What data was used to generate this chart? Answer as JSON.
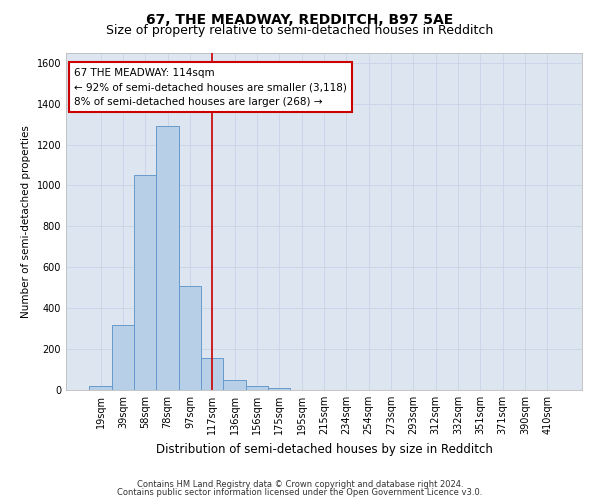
{
  "title": "67, THE MEADWAY, REDDITCH, B97 5AE",
  "subtitle": "Size of property relative to semi-detached houses in Redditch",
  "xlabel": "Distribution of semi-detached houses by size in Redditch",
  "ylabel": "Number of semi-detached properties",
  "footnote1": "Contains HM Land Registry data © Crown copyright and database right 2024.",
  "footnote2": "Contains public sector information licensed under the Open Government Licence v3.0.",
  "categories": [
    "19sqm",
    "39sqm",
    "58sqm",
    "78sqm",
    "97sqm",
    "117sqm",
    "136sqm",
    "156sqm",
    "175sqm",
    "195sqm",
    "215sqm",
    "234sqm",
    "254sqm",
    "273sqm",
    "293sqm",
    "312sqm",
    "332sqm",
    "351sqm",
    "371sqm",
    "390sqm",
    "410sqm"
  ],
  "values": [
    20,
    320,
    1050,
    1290,
    510,
    155,
    50,
    20,
    10,
    0,
    0,
    0,
    0,
    0,
    0,
    0,
    0,
    0,
    0,
    0,
    0
  ],
  "bar_color": "#b8cfe8",
  "bar_edge_color": "#6699cc",
  "vline_x": 5.0,
  "vline_color": "#cc0000",
  "annotation_line1": "67 THE MEADWAY: 114sqm",
  "annotation_line2": "← 92% of semi-detached houses are smaller (3,118)",
  "annotation_line3": "8% of semi-detached houses are larger (268) →",
  "annotation_box_color": "#ffffff",
  "annotation_box_edge": "#cc0000",
  "ylim": [
    0,
    1650
  ],
  "yticks": [
    0,
    200,
    400,
    600,
    800,
    1000,
    1200,
    1400,
    1600
  ],
  "grid_color": "#c8d4e8",
  "bg_color": "#dde6f0",
  "title_fontsize": 10,
  "subtitle_fontsize": 9,
  "xlabel_fontsize": 8.5,
  "ylabel_fontsize": 7.5,
  "tick_fontsize": 7,
  "annot_fontsize": 7.5
}
